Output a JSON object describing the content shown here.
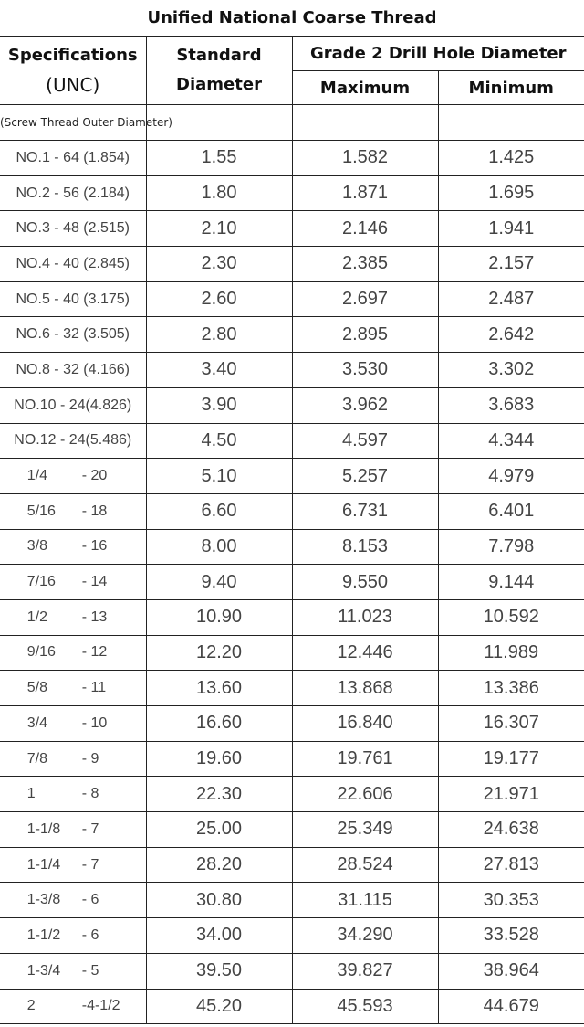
{
  "title": "Unified National Coarse Thread",
  "headers": {
    "spec_line1": "Specifications",
    "spec_line2": "(UNC)",
    "std_line1": "Standard",
    "std_line2": "Diameter",
    "group": "Grade 2 Drill Hole Diameter",
    "max": "Maximum",
    "min": "Minimum",
    "note": "(Screw Thread Outer Diameter)"
  },
  "rows": [
    {
      "spec": "NO.1 - 64 (1.854)",
      "std": "1.55",
      "max": "1.582",
      "min": "1.425"
    },
    {
      "spec": "NO.2 - 56 (2.184)",
      "std": "1.80",
      "max": "1.871",
      "min": "1.695"
    },
    {
      "spec": "NO.3 - 48 (2.515)",
      "std": "2.10",
      "max": "2.146",
      "min": "1.941"
    },
    {
      "spec": "NO.4 - 40 (2.845)",
      "std": "2.30",
      "max": "2.385",
      "min": "2.157"
    },
    {
      "spec": "NO.5 - 40 (3.175)",
      "std": "2.60",
      "max": "2.697",
      "min": "2.487"
    },
    {
      "spec": "NO.6 - 32 (3.505)",
      "std": "2.80",
      "max": "2.895",
      "min": "2.642"
    },
    {
      "spec": "NO.8 - 32 (4.166)",
      "std": "3.40",
      "max": "3.530",
      "min": "3.302"
    },
    {
      "spec": "NO.10 - 24(4.826)",
      "std": "3.90",
      "max": "3.962",
      "min": "3.683"
    },
    {
      "spec": "NO.12 - 24(5.486)",
      "std": "4.50",
      "max": "4.597",
      "min": "4.344"
    },
    {
      "size": "1/4",
      "tpi": "- 20",
      "std": "5.10",
      "max": "5.257",
      "min": "4.979"
    },
    {
      "size": "5/16",
      "tpi": "- 18",
      "std": "6.60",
      "max": "6.731",
      "min": "6.401"
    },
    {
      "size": "3/8",
      "tpi": "- 16",
      "std": "8.00",
      "max": "8.153",
      "min": "7.798"
    },
    {
      "size": "7/16",
      "tpi": "- 14",
      "std": "9.40",
      "max": "9.550",
      "min": "9.144"
    },
    {
      "size": "1/2",
      "tpi": "- 13",
      "std": "10.90",
      "max": "11.023",
      "min": "10.592"
    },
    {
      "size": "9/16",
      "tpi": "- 12",
      "std": "12.20",
      "max": "12.446",
      "min": "11.989"
    },
    {
      "size": "5/8",
      "tpi": "- 11",
      "std": "13.60",
      "max": "13.868",
      "min": "13.386"
    },
    {
      "size": "3/4",
      "tpi": "- 10",
      "std": "16.60",
      "max": "16.840",
      "min": "16.307"
    },
    {
      "size": "7/8",
      "tpi": "- 9",
      "std": "19.60",
      "max": "19.761",
      "min": "19.177"
    },
    {
      "size": "1",
      "tpi": "- 8",
      "std": "22.30",
      "max": "22.606",
      "min": "21.971"
    },
    {
      "size": "1-1/8",
      "tpi": "- 7",
      "std": "25.00",
      "max": "25.349",
      "min": "24.638"
    },
    {
      "size": "1-1/4",
      "tpi": "- 7",
      "std": "28.20",
      "max": "28.524",
      "min": "27.813"
    },
    {
      "size": "1-3/8",
      "tpi": "- 6",
      "std": "30.80",
      "max": "31.115",
      "min": "30.353"
    },
    {
      "size": "1-1/2",
      "tpi": "- 6",
      "std": "34.00",
      "max": "34.290",
      "min": "33.528"
    },
    {
      "size": "1-3/4",
      "tpi": "- 5",
      "std": "39.50",
      "max": "39.827",
      "min": "38.964"
    },
    {
      "size": "2",
      "tpi": "-4-1/2",
      "std": "45.20",
      "max": "45.593",
      "min": "44.679"
    }
  ]
}
